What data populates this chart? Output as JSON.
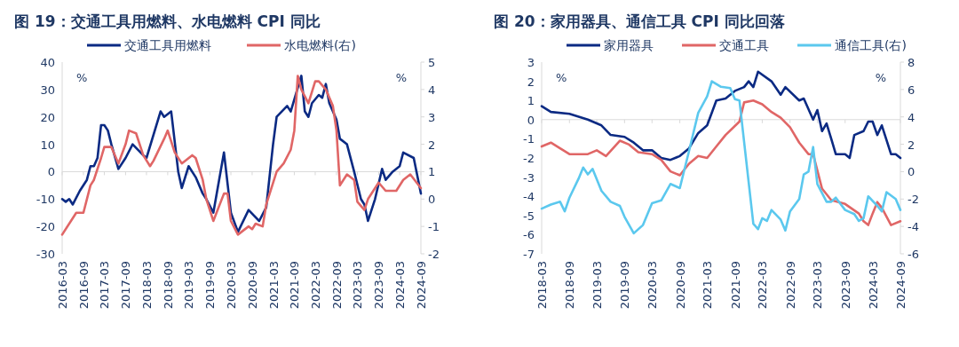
{
  "chart_data": [
    {
      "type": "line",
      "title": "图 19：交通工具用燃料、水电燃料 CPI 同比",
      "ylabel": "%",
      "y2label": "%",
      "legend": "top",
      "xlim": [
        "2016-03",
        "2024-09"
      ],
      "xticks": [
        "2016-03",
        "2016-09",
        "2017-03",
        "2017-09",
        "2018-03",
        "2018-09",
        "2019-03",
        "2019-09",
        "2020-03",
        "2020-09",
        "2021-03",
        "2021-09",
        "2022-03",
        "2022-09",
        "2023-03",
        "2023-09",
        "2024-03",
        "2024-09"
      ],
      "ylim": [
        -30,
        40
      ],
      "yticks": [
        -30,
        -20,
        -10,
        0,
        10,
        20,
        30,
        40
      ],
      "y2lim": [
        -2,
        5
      ],
      "y2ticks": [
        -2,
        -1,
        0,
        1,
        2,
        3,
        4,
        5
      ],
      "series": [
        {
          "name": "交通工具用燃料",
          "color": "#0b2a83",
          "x": [
            "2016-03",
            "2016-04",
            "2016-05",
            "2016-06",
            "2016-08",
            "2016-10",
            "2016-11",
            "2016-12",
            "2017-01",
            "2017-02",
            "2017-03",
            "2017-04",
            "2017-05",
            "2017-07",
            "2017-09",
            "2017-11",
            "2018-02",
            "2018-03",
            "2018-07",
            "2018-08",
            "2018-10",
            "2018-12",
            "2019-01",
            "2019-03",
            "2019-05",
            "2019-07",
            "2019-08",
            "2019-10",
            "2020-01",
            "2020-03",
            "2020-05",
            "2020-08",
            "2020-11",
            "2021-01",
            "2021-03",
            "2021-04",
            "2021-07",
            "2021-08",
            "2021-11",
            "2021-12",
            "2022-01",
            "2022-02",
            "2022-04",
            "2022-05",
            "2022-06",
            "2022-07",
            "2022-09",
            "2022-10",
            "2022-12",
            "2023-02",
            "2023-04",
            "2023-05",
            "2023-06",
            "2023-08",
            "2023-10",
            "2023-11",
            "2024-01",
            "2024-03",
            "2024-04",
            "2024-07",
            "2024-09"
          ],
          "values": [
            -10,
            -11,
            -10,
            -12,
            -7,
            -3,
            2,
            2,
            5,
            17,
            17,
            15,
            10,
            1,
            5,
            10,
            6,
            5,
            22,
            20,
            22,
            0,
            -6,
            2,
            -2,
            -8,
            -10,
            -15,
            7,
            -15,
            -22,
            -14,
            -18,
            -13,
            10,
            20,
            24,
            22,
            35,
            22,
            20,
            25,
            28,
            27,
            32,
            25,
            19,
            12,
            10,
            0,
            -10,
            -12,
            -18,
            -10,
            1,
            -3,
            0,
            2,
            7,
            5,
            -8
          ]
        },
        {
          "name": "水电燃料(右)",
          "color": "#e06666",
          "axis": "y2",
          "x": [
            "2016-03",
            "2016-07",
            "2016-09",
            "2016-11",
            "2016-12",
            "2017-02",
            "2017-03",
            "2017-05",
            "2017-07",
            "2017-09",
            "2017-10",
            "2017-12",
            "2018-02",
            "2018-04",
            "2018-05",
            "2018-08",
            "2018-09",
            "2018-11",
            "2019-01",
            "2019-04",
            "2019-05",
            "2019-07",
            "2019-08",
            "2019-10",
            "2020-01",
            "2020-02",
            "2020-03",
            "2020-05",
            "2020-08",
            "2020-09",
            "2020-10",
            "2020-12",
            "2021-01",
            "2021-04",
            "2021-06",
            "2021-08",
            "2021-09",
            "2021-10",
            "2021-11",
            "2022-01",
            "2022-03",
            "2022-04",
            "2022-06",
            "2022-08",
            "2022-09",
            "2022-10",
            "2022-12",
            "2023-02",
            "2023-03",
            "2023-05",
            "2023-06",
            "2023-09",
            "2023-11",
            "2024-02",
            "2024-04",
            "2024-06",
            "2024-09"
          ],
          "values": [
            -1.3,
            -0.5,
            -0.5,
            0.5,
            0.7,
            1.5,
            1.9,
            1.9,
            1.3,
            2.0,
            2.5,
            2.4,
            1.6,
            1.2,
            1.4,
            2.2,
            2.5,
            1.7,
            1.3,
            1.6,
            1.5,
            0.7,
            0.0,
            -0.8,
            0.2,
            0.2,
            -0.8,
            -1.3,
            -1.0,
            -1.1,
            -0.9,
            -1.0,
            -0.2,
            1,
            1.3,
            1.8,
            2.5,
            4.5,
            4.0,
            3.5,
            4.3,
            4.3,
            4.0,
            3.4,
            2.5,
            0.5,
            0.9,
            0.7,
            -0.1,
            -0.4,
            0.0,
            0.6,
            0.3,
            0.3,
            0.7,
            0.9,
            0.4
          ]
        }
      ]
    },
    {
      "type": "line",
      "title": "图 20：家用器具、通信工具 CPI 同比回落",
      "ylabel": "%",
      "y2label": "%",
      "legend": "top",
      "xlim": [
        "2018-03",
        "2024-09"
      ],
      "xticks": [
        "2018-03",
        "2018-09",
        "2019-03",
        "2019-09",
        "2020-03",
        "2020-09",
        "2021-03",
        "2021-09",
        "2022-03",
        "2022-09",
        "2023-03",
        "2023-09",
        "2024-03",
        "2024-09"
      ],
      "ylim": [
        -7,
        3
      ],
      "yticks": [
        -7,
        -6,
        -5,
        -4,
        -3,
        -2,
        -1,
        0,
        1,
        2,
        3
      ],
      "y2lim": [
        -6,
        8
      ],
      "y2ticks": [
        -6,
        -4,
        -2,
        0,
        2,
        4,
        6,
        8
      ],
      "series": [
        {
          "name": "家用器具",
          "color": "#0b2a83",
          "x": [
            "2018-03",
            "2018-05",
            "2018-09",
            "2019-01",
            "2019-04",
            "2019-06",
            "2019-09",
            "2019-11",
            "2020-01",
            "2020-03",
            "2020-05",
            "2020-07",
            "2020-09",
            "2020-11",
            "2021-01",
            "2021-03",
            "2021-05",
            "2021-07",
            "2021-09",
            "2021-11",
            "2021-12",
            "2022-01",
            "2022-02",
            "2022-05",
            "2022-07",
            "2022-08",
            "2022-11",
            "2022-12",
            "2023-02",
            "2023-03",
            "2023-04",
            "2023-05",
            "2023-06",
            "2023-07",
            "2023-09",
            "2023-10",
            "2023-11",
            "2024-01",
            "2024-02",
            "2024-03",
            "2024-04",
            "2024-05",
            "2024-07",
            "2024-08",
            "2024-09"
          ],
          "values": [
            0.7,
            0.4,
            0.3,
            0,
            -0.3,
            -0.8,
            -0.9,
            -1.2,
            -1.6,
            -1.6,
            -2,
            -2.1,
            -1.9,
            -1.5,
            -0.7,
            -0.3,
            1,
            1.1,
            1.5,
            1.7,
            2,
            1.7,
            2.5,
            2,
            1.3,
            1.7,
            1,
            1.1,
            0,
            0.5,
            -0.6,
            -0.2,
            -1,
            -1.8,
            -1.8,
            -2,
            -0.8,
            -0.6,
            -0.1,
            -0.1,
            -0.8,
            -0.3,
            -1.8,
            -1.8,
            -2
          ]
        },
        {
          "name": "交通工具",
          "color": "#e06666",
          "x": [
            "2018-03",
            "2018-05",
            "2018-07",
            "2018-09",
            "2018-11",
            "2019-01",
            "2019-03",
            "2019-05",
            "2019-08",
            "2019-10",
            "2019-12",
            "2020-03",
            "2020-05",
            "2020-07",
            "2020-09",
            "2020-11",
            "2021-01",
            "2021-03",
            "2021-05",
            "2021-07",
            "2021-10",
            "2021-11",
            "2022-01",
            "2022-03",
            "2022-05",
            "2022-07",
            "2022-09",
            "2022-11",
            "2023-01",
            "2023-02",
            "2023-04",
            "2023-06",
            "2023-09",
            "2023-12",
            "2024-01",
            "2024-02",
            "2024-03",
            "2024-04",
            "2024-05",
            "2024-07",
            "2024-09"
          ],
          "values": [
            -1.4,
            -1.2,
            -1.5,
            -1.8,
            -1.8,
            -1.8,
            -1.6,
            -1.9,
            -1.1,
            -1.3,
            -1.7,
            -1.8,
            -2.1,
            -2.7,
            -2.9,
            -2.3,
            -1.9,
            -2,
            -1.4,
            -0.8,
            -0.1,
            0.9,
            1,
            0.8,
            0.4,
            0.1,
            -0.4,
            -1.2,
            -1.8,
            -1.8,
            -3.6,
            -4.2,
            -4.4,
            -4.9,
            -5.3,
            -5.5,
            -4.9,
            -4.3,
            -4.6,
            -5.5,
            -5.3
          ]
        },
        {
          "name": "通信工具(右)",
          "color": "#5bc8ee",
          "axis": "y2",
          "x": [
            "2018-03",
            "2018-05",
            "2018-07",
            "2018-08",
            "2018-09",
            "2018-11",
            "2018-12",
            "2019-01",
            "2019-02",
            "2019-04",
            "2019-06",
            "2019-08",
            "2019-09",
            "2019-11",
            "2020-01",
            "2020-03",
            "2020-05",
            "2020-07",
            "2020-09",
            "2020-11",
            "2021-01",
            "2021-03",
            "2021-04",
            "2021-06",
            "2021-08",
            "2021-09",
            "2021-10",
            "2022-01",
            "2022-02",
            "2022-03",
            "2022-04",
            "2022-05",
            "2022-07",
            "2022-08",
            "2022-09",
            "2022-11",
            "2022-12",
            "2023-01",
            "2023-02",
            "2023-03",
            "2023-05",
            "2023-06",
            "2023-07",
            "2023-09",
            "2023-11",
            "2023-12",
            "2024-01",
            "2024-02",
            "2024-04",
            "2024-05",
            "2024-06",
            "2024-08",
            "2024-09"
          ],
          "values": [
            -2.7,
            -2.4,
            -2.2,
            -2.9,
            -1.9,
            -0.5,
            0.3,
            -0.2,
            0.2,
            -1.4,
            -2.2,
            -2.5,
            -3.3,
            -4.5,
            -3.9,
            -2.3,
            -2.1,
            -0.9,
            -1.2,
            1.5,
            4.3,
            5.5,
            6.6,
            6.2,
            6.1,
            5.3,
            5.2,
            -3.8,
            -4.2,
            -3.4,
            -3.6,
            -2.8,
            -3.5,
            -4.3,
            -2.9,
            -2,
            -0.2,
            0,
            1.8,
            -0.9,
            -2.2,
            -2.2,
            -1.9,
            -2.8,
            -3.1,
            -3.6,
            -3.4,
            -1.8,
            -2.5,
            -2.9,
            -1.5,
            -2,
            -2.8
          ]
        }
      ]
    }
  ]
}
